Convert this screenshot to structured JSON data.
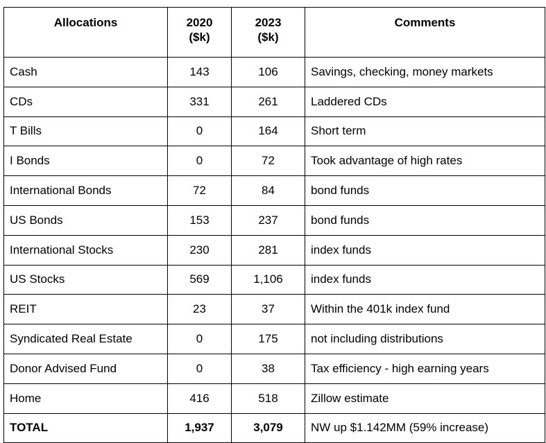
{
  "headers": {
    "allocations": "Allocations",
    "year2020_line1": "2020",
    "year2020_line2": "($k)",
    "year2023_line1": "2023",
    "year2023_line2": "($k)",
    "comments": "Comments"
  },
  "rows": [
    {
      "label": "Cash",
      "v2020": "143",
      "v2023": "106",
      "comment": "Savings, checking, money markets"
    },
    {
      "label": "CDs",
      "v2020": "331",
      "v2023": "261",
      "comment": "Laddered CDs"
    },
    {
      "label": "T Bills",
      "v2020": "0",
      "v2023": "164",
      "comment": "Short term"
    },
    {
      "label": "I Bonds",
      "v2020": "0",
      "v2023": "72",
      "comment": "Took advantage of high rates"
    },
    {
      "label": "International Bonds",
      "v2020": "72",
      "v2023": "84",
      "comment": "bond funds"
    },
    {
      "label": "US Bonds",
      "v2020": "153",
      "v2023": "237",
      "comment": "bond funds"
    },
    {
      "label": "International Stocks",
      "v2020": "230",
      "v2023": "281",
      "comment": "index funds"
    },
    {
      "label": "US Stocks",
      "v2020": "569",
      "v2023": "1,106",
      "comment": "index funds"
    },
    {
      "label": "REIT",
      "v2020": "23",
      "v2023": "37",
      "comment": "Within the 401k index fund"
    },
    {
      "label": "Syndicated Real Estate",
      "v2020": "0",
      "v2023": "175",
      "comment": "not including distributions"
    },
    {
      "label": "Donor Advised Fund",
      "v2020": "0",
      "v2023": "38",
      "comment": "Tax efficiency - high earning years"
    },
    {
      "label": "Home",
      "v2020": "416",
      "v2023": "518",
      "comment": "Zillow estimate"
    },
    {
      "label": "TOTAL",
      "v2020": "1,937",
      "v2023": "3,079",
      "comment": "NW up $1.142MM (59% increase)"
    }
  ]
}
